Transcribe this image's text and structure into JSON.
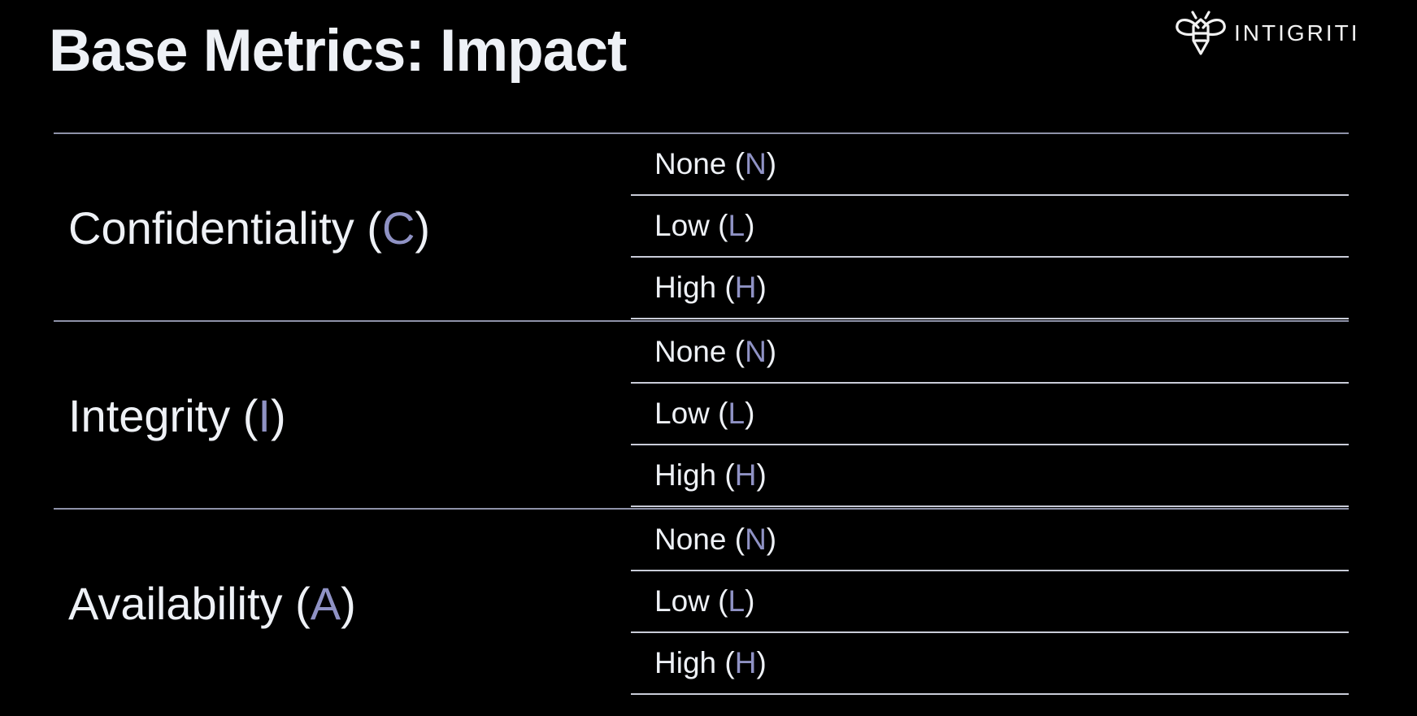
{
  "slide": {
    "title": "Base Metrics: Impact",
    "logo_text": "INTIGRITI",
    "logo_icon": "bee-icon"
  },
  "colors": {
    "background": "#000000",
    "text": "#eef1f6",
    "abbreviation": "#8f92c4",
    "rule": "#8e92a8"
  },
  "metrics": [
    {
      "name": "Confidentiality",
      "abbr": "C",
      "values": [
        {
          "label": "None",
          "abbr": "N"
        },
        {
          "label": "Low",
          "abbr": "L"
        },
        {
          "label": "High",
          "abbr": "H"
        }
      ]
    },
    {
      "name": "Integrity",
      "abbr": "I",
      "values": [
        {
          "label": "None",
          "abbr": "N"
        },
        {
          "label": "Low",
          "abbr": "L"
        },
        {
          "label": "High",
          "abbr": "H"
        }
      ]
    },
    {
      "name": "Availability",
      "abbr": "A",
      "values": [
        {
          "label": "None",
          "abbr": "N"
        },
        {
          "label": "Low",
          "abbr": "L"
        },
        {
          "label": "High",
          "abbr": "H"
        }
      ]
    }
  ]
}
